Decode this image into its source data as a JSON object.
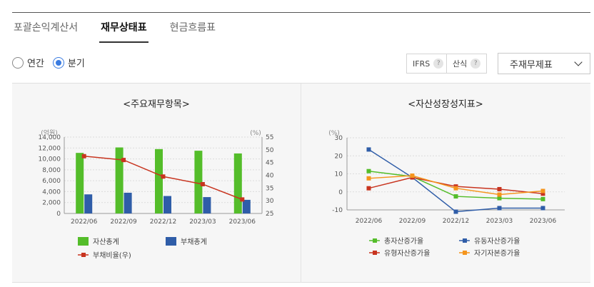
{
  "tabs": [
    {
      "label": "포괄손익계산서",
      "active": false
    },
    {
      "label": "재무상태표",
      "active": true
    },
    {
      "label": "현금흐름표",
      "active": false
    }
  ],
  "period_options": [
    {
      "label": "연간",
      "checked": false
    },
    {
      "label": "분기",
      "checked": true
    }
  ],
  "options": [
    {
      "label": "IFRS",
      "icon": "question-icon"
    },
    {
      "label": "산식",
      "icon": "question-icon"
    }
  ],
  "help_glyph": "?",
  "statement_select": {
    "value": "주재무제표",
    "icon": "chevron-down-icon"
  },
  "chart_data": [
    {
      "type": "bar",
      "title": "<주요재무항목>",
      "categories": [
        "2022/06",
        "2022/09",
        "2022/12",
        "2023/03",
        "2023/06"
      ],
      "y_left": {
        "label": "(억원)",
        "ylim": [
          0,
          14000
        ],
        "ticks": [
          "0",
          "2,000",
          "4,000",
          "6,000",
          "8,000",
          "10,000",
          "12,000",
          "14,000"
        ]
      },
      "y_right": {
        "label": "(%)",
        "ylim": [
          25,
          55
        ],
        "ticks": [
          "25",
          "30",
          "35",
          "40",
          "45",
          "50",
          "55"
        ]
      },
      "series": [
        {
          "name": "자산총계",
          "type": "bar",
          "axis": "left",
          "color": "#54bd2a",
          "values": [
            11100,
            12100,
            11800,
            11500,
            11000
          ]
        },
        {
          "name": "부채총계",
          "type": "bar",
          "axis": "left",
          "color": "#2f5da8",
          "values": [
            3500,
            3800,
            3200,
            3000,
            2500
          ]
        },
        {
          "name": "부채비율(우)",
          "type": "line",
          "axis": "right",
          "color": "#c8341f",
          "values": [
            47.5,
            46.0,
            39.5,
            36.5,
            30.5
          ]
        }
      ],
      "grid": true,
      "legend": "bottom"
    },
    {
      "type": "line",
      "title": "<자산성장성지표>",
      "categories": [
        "2022/06",
        "2022/09",
        "2022/12",
        "2023/03",
        "2023/06"
      ],
      "y": {
        "label": "(%)",
        "ylim": [
          -10,
          30
        ],
        "ticks": [
          "-10",
          "0",
          "10",
          "20",
          "30"
        ]
      },
      "series": [
        {
          "name": "총자산증가율",
          "color": "#54bd2a",
          "values": [
            11.5,
            8.5,
            -2.5,
            -3.5,
            -4.0
          ]
        },
        {
          "name": "유동자산증가율",
          "color": "#2f5da8",
          "values": [
            23.5,
            8.0,
            -11.0,
            -9.0,
            -9.0
          ]
        },
        {
          "name": "유형자산증가율",
          "color": "#c8341f",
          "values": [
            2.0,
            8.0,
            3.0,
            1.5,
            -1.0
          ]
        },
        {
          "name": "자기자본증가율",
          "color": "#f5951d",
          "values": [
            7.5,
            9.0,
            2.0,
            -1.5,
            0.5
          ]
        }
      ],
      "grid": true,
      "legend": "bottom"
    }
  ]
}
